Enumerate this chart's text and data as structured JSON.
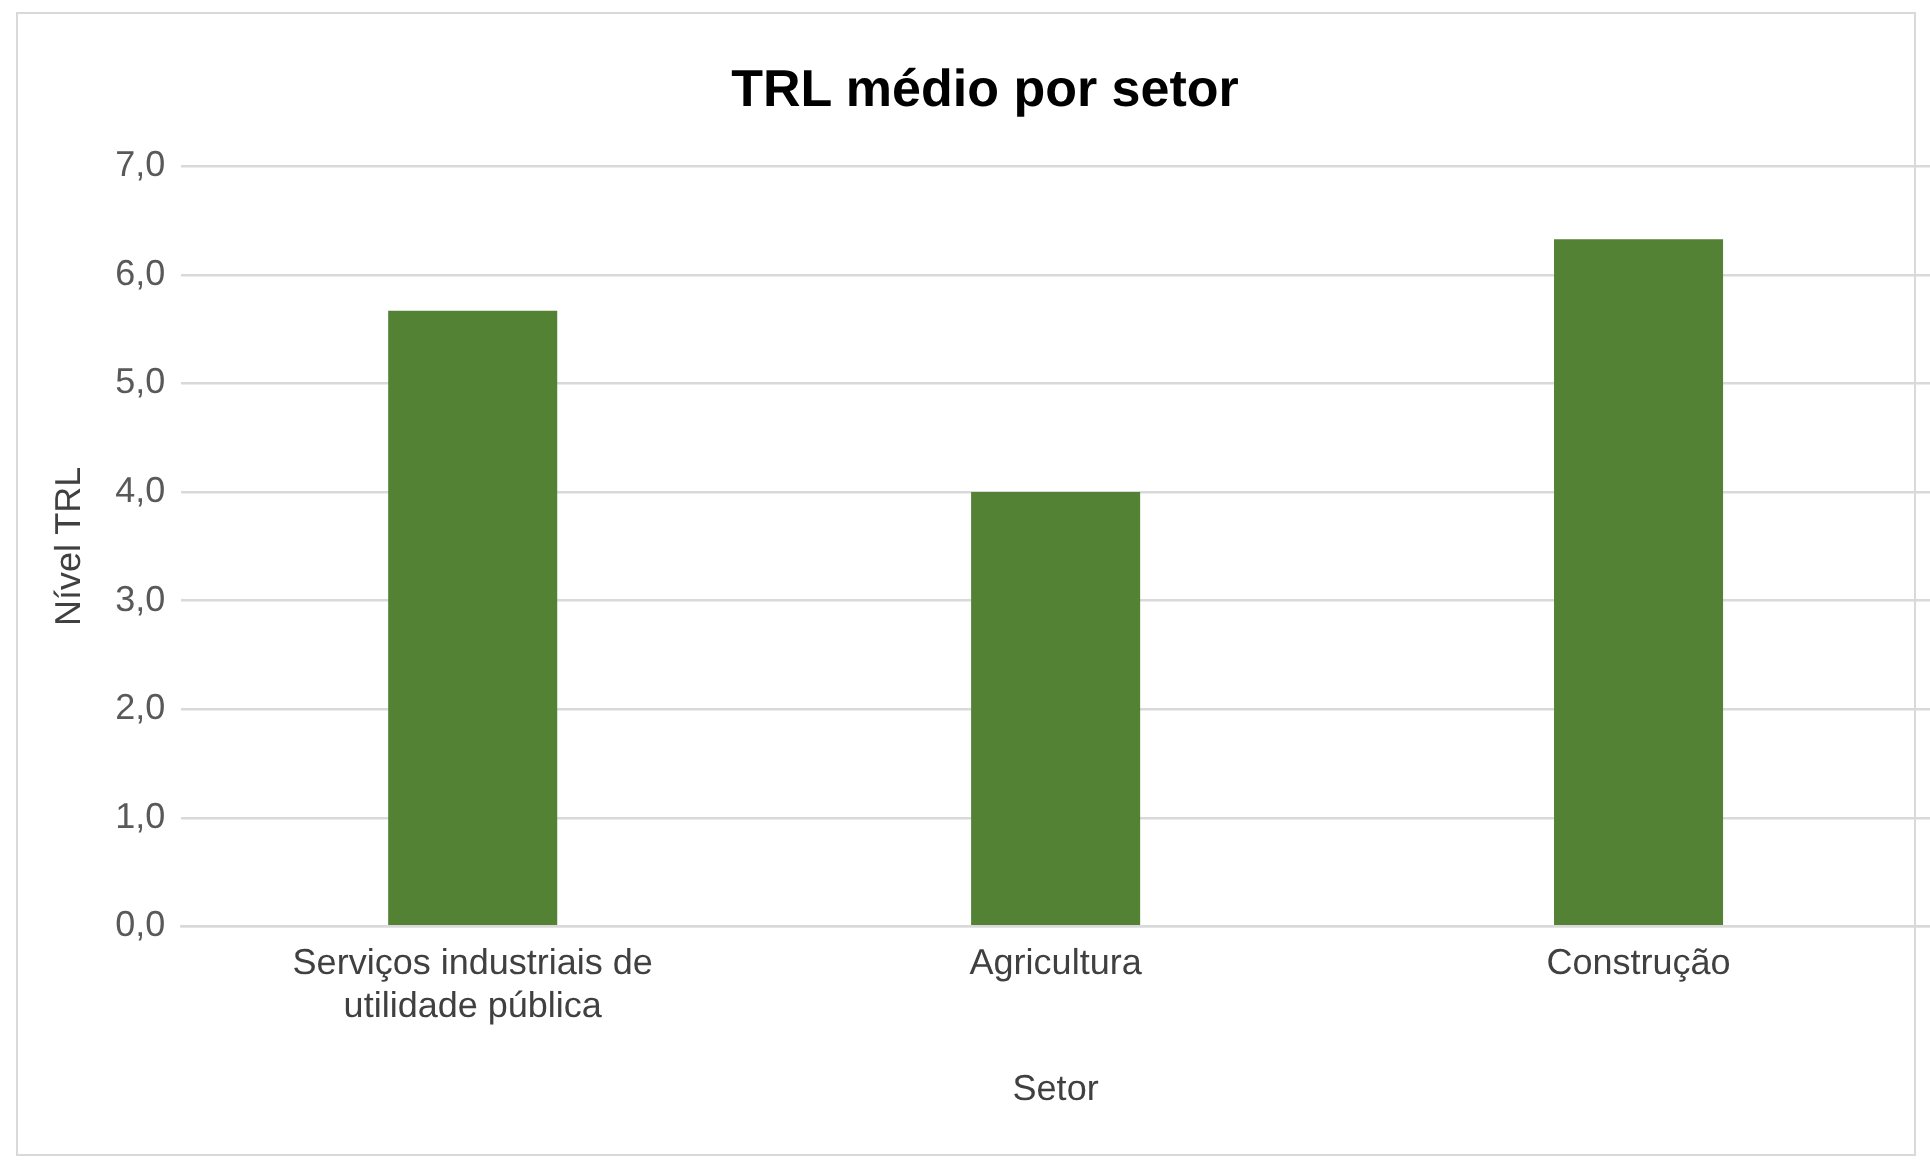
{
  "chart_data": {
    "type": "bar",
    "title": "TRL médio por setor",
    "xlabel": "Setor",
    "ylabel": "Nível TRL",
    "categories": [
      "Serviços industriais de utilidade pública",
      "Agricultura",
      "Construção"
    ],
    "values": [
      5.67,
      4.0,
      6.33
    ],
    "color": "#548235",
    "ylim": [
      0,
      7
    ],
    "yticks": [
      {
        "value": 0,
        "label": "0,0"
      },
      {
        "value": 1,
        "label": "1,0"
      },
      {
        "value": 2,
        "label": "2,0"
      },
      {
        "value": 3,
        "label": "3,0"
      },
      {
        "value": 4,
        "label": "4,0"
      },
      {
        "value": 5,
        "label": "5,0"
      },
      {
        "value": 6,
        "label": "6,0"
      },
      {
        "value": 7,
        "label": "7,0"
      }
    ],
    "grid": "y",
    "legend": false
  }
}
